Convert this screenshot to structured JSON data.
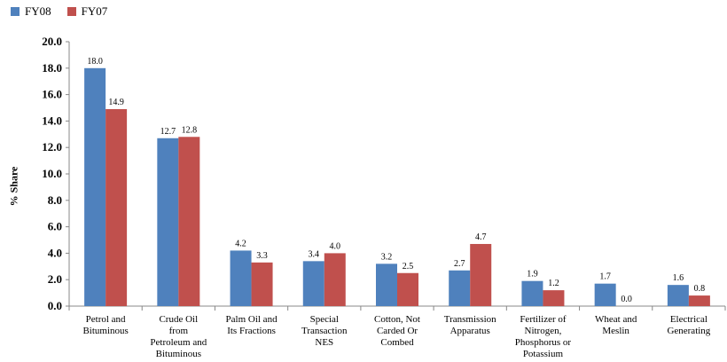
{
  "chart_data": {
    "type": "bar",
    "ylabel": "% Share",
    "ylim": [
      0,
      20
    ],
    "ytick_step": 2,
    "ytick_labels": [
      "0.0",
      "2.0",
      "4.0",
      "6.0",
      "8.0",
      "10.0",
      "12.0",
      "14.0",
      "16.0",
      "18.0",
      "20.0"
    ],
    "categories": [
      "Petrol and Bituminous",
      "Crude Oil from Petroleum and Bituminous",
      "Palm Oil and Its Fractions",
      "Special Transaction NES",
      "Cotton, Not Carded Or Combed",
      "Transmission Apparatus",
      "Fertilizer of Nitrogen, Phosphorus or Potassium",
      "Wheat and Meslin",
      "Electrical Generating"
    ],
    "category_lines": [
      [
        "Petrol and",
        "Bituminous"
      ],
      [
        "Crude Oil",
        "from",
        "Petroleum and",
        "Bituminous"
      ],
      [
        "Palm Oil and",
        "Its Fractions"
      ],
      [
        "Special",
        "Transaction",
        "NES"
      ],
      [
        "Cotton, Not",
        "Carded Or",
        "Combed"
      ],
      [
        "Transmission",
        "Apparatus"
      ],
      [
        "Fertilizer of",
        "Nitrogen,",
        "Phosphorus or",
        "Potassium"
      ],
      [
        "Wheat and",
        "Meslin"
      ],
      [
        "Electrical",
        "Generating"
      ]
    ],
    "series": [
      {
        "name": "FY08",
        "color": "#4F81BD",
        "values": [
          18.0,
          12.7,
          4.2,
          3.4,
          3.2,
          2.7,
          1.9,
          1.7,
          1.6
        ]
      },
      {
        "name": "FY07",
        "color": "#C0504D",
        "values": [
          14.9,
          12.8,
          3.3,
          4.0,
          2.5,
          4.7,
          1.2,
          0.0,
          0.8
        ]
      }
    ],
    "data_labels": [
      [
        "18.0",
        "12.7",
        "4.2",
        "3.4",
        "3.2",
        "2.7",
        "1.9",
        "1.7",
        "1.6"
      ],
      [
        "14.9",
        "12.8",
        "3.3",
        "4.0",
        "2.5",
        "4.7",
        "1.2",
        "0.0",
        "0.8"
      ]
    ],
    "legend_position": "top-left",
    "grid": false
  }
}
